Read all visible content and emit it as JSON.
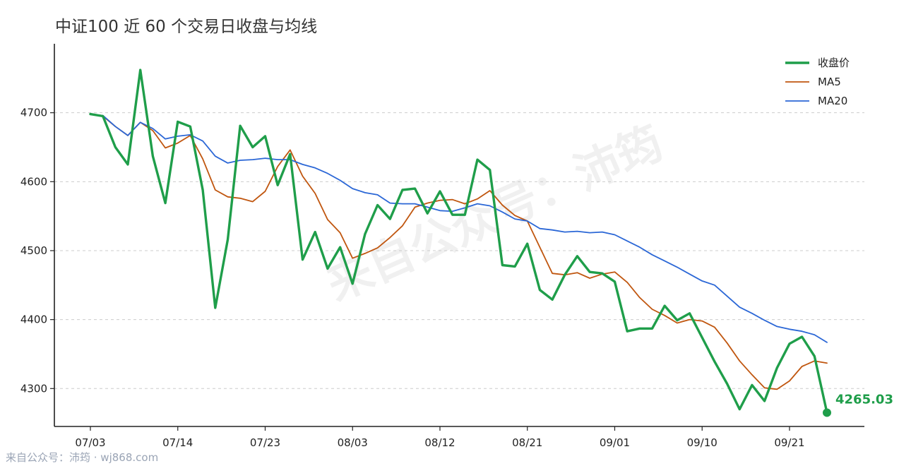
{
  "chart_data": {
    "type": "line",
    "title": "中证100 近 60 个交易日收盘与均线",
    "xlabel": "",
    "ylabel": "",
    "ylim": [
      4245,
      4800
    ],
    "yticks": [
      4300,
      4400,
      4500,
      4600,
      4700
    ],
    "xtick_labels": [
      {
        "index": 0,
        "label": "07/03"
      },
      {
        "index": 7,
        "label": "07/14"
      },
      {
        "index": 14,
        "label": "07/23"
      },
      {
        "index": 21,
        "label": "08/03"
      },
      {
        "index": 28,
        "label": "08/12"
      },
      {
        "index": 35,
        "label": "08/21"
      },
      {
        "index": 42,
        "label": "09/01"
      },
      {
        "index": 49,
        "label": "09/10"
      },
      {
        "index": 56,
        "label": "09/21"
      }
    ],
    "grid": "horizontal",
    "legend": "top-right",
    "series": [
      {
        "name": "收盘价",
        "color": "#1f9e4a",
        "values": [
          4698,
          4695,
          4650,
          4625,
          4762,
          4637,
          4569,
          4687,
          4680,
          4588,
          4417,
          4516,
          4681,
          4650,
          4666,
          4595,
          4640,
          4487,
          4527,
          4474,
          4505,
          4452,
          4524,
          4566,
          4546,
          4588,
          4590,
          4554,
          4586,
          4552,
          4552,
          4632,
          4617,
          4479,
          4477,
          4510,
          4443,
          4429,
          4465,
          4492,
          4469,
          4467,
          4455,
          4383,
          4387,
          4387,
          4420,
          4399,
          4409,
          4374,
          4339,
          4307,
          4270,
          4305,
          4282,
          4330,
          4365,
          4375,
          4347,
          4265.03
        ]
      },
      {
        "name": "MA5",
        "color": "#c0560f",
        "values": [
          4698,
          4695,
          4680,
          4667,
          4686,
          4674,
          4649,
          4656,
          4667,
          4633,
          4588,
          4578,
          4576,
          4571,
          4586,
          4622,
          4646,
          4608,
          4583,
          4545,
          4526,
          4489,
          4496,
          4504,
          4519,
          4536,
          4563,
          4569,
          4573,
          4574,
          4568,
          4575,
          4587,
          4566,
          4551,
          4543,
          4505,
          4467,
          4465,
          4468,
          4460,
          4466,
          4469,
          4454,
          4432,
          4415,
          4406,
          4395,
          4400,
          4398,
          4389,
          4366,
          4340,
          4320,
          4301,
          4299,
          4311,
          4332,
          4340,
          4337
        ]
      },
      {
        "name": "MA20",
        "color": "#2b67d6",
        "values": [
          4698,
          4696,
          4680,
          4667,
          4686,
          4677,
          4662,
          4666,
          4668,
          4659,
          4637,
          4627,
          4631,
          4632,
          4634,
          4632,
          4632,
          4625,
          4620,
          4612,
          4602,
          4590,
          4584,
          4581,
          4569,
          4568,
          4568,
          4563,
          4558,
          4557,
          4562,
          4568,
          4565,
          4556,
          4546,
          4543,
          4532,
          4530,
          4527,
          4528,
          4526,
          4527,
          4523,
          4514,
          4505,
          4494,
          4485,
          4476,
          4466,
          4456,
          4450,
          4434,
          4418,
          4409,
          4399,
          4390,
          4386,
          4383,
          4378,
          4367
        ]
      }
    ],
    "end_label": "4265.03"
  },
  "watermark": "来自公众号：沛筠",
  "footer": "来自公众号：沛筠 · wj868.com"
}
